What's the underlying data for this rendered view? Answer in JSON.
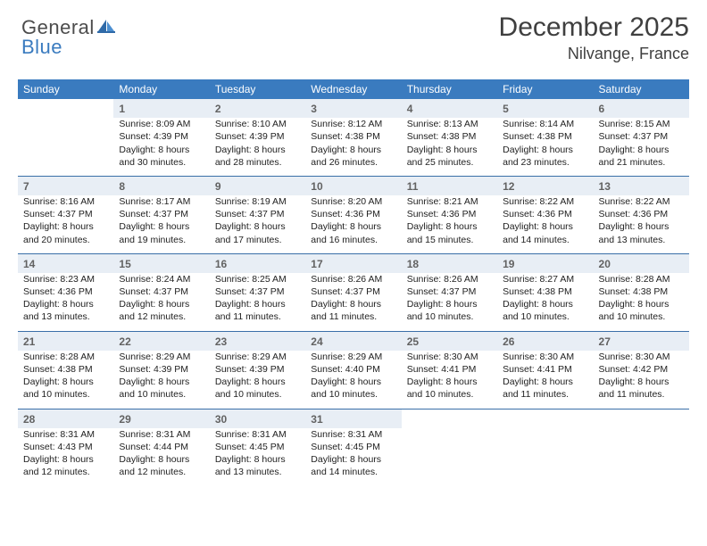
{
  "logo": {
    "part1": "General",
    "part2": "Blue"
  },
  "title": "December 2025",
  "location": "Nilvange, France",
  "colors": {
    "header_bg": "#3a7bbf",
    "header_fg": "#ffffff",
    "daynum_bg": "#e8eef5",
    "daynum_fg": "#626262",
    "rule": "#3a6fa8",
    "text": "#222222",
    "title_fg": "#3f3f3f"
  },
  "fonts": {
    "title_size_pt": 22,
    "location_size_pt": 13,
    "header_size_pt": 9,
    "daynum_size_pt": 9,
    "body_size_pt": 8
  },
  "weekdays": [
    "Sunday",
    "Monday",
    "Tuesday",
    "Wednesday",
    "Thursday",
    "Friday",
    "Saturday"
  ],
  "weeks": [
    {
      "nums": [
        "",
        "1",
        "2",
        "3",
        "4",
        "5",
        "6"
      ],
      "cells": [
        null,
        {
          "sunrise": "Sunrise: 8:09 AM",
          "sunset": "Sunset: 4:39 PM",
          "day1": "Daylight: 8 hours",
          "day2": "and 30 minutes."
        },
        {
          "sunrise": "Sunrise: 8:10 AM",
          "sunset": "Sunset: 4:39 PM",
          "day1": "Daylight: 8 hours",
          "day2": "and 28 minutes."
        },
        {
          "sunrise": "Sunrise: 8:12 AM",
          "sunset": "Sunset: 4:38 PM",
          "day1": "Daylight: 8 hours",
          "day2": "and 26 minutes."
        },
        {
          "sunrise": "Sunrise: 8:13 AM",
          "sunset": "Sunset: 4:38 PM",
          "day1": "Daylight: 8 hours",
          "day2": "and 25 minutes."
        },
        {
          "sunrise": "Sunrise: 8:14 AM",
          "sunset": "Sunset: 4:38 PM",
          "day1": "Daylight: 8 hours",
          "day2": "and 23 minutes."
        },
        {
          "sunrise": "Sunrise: 8:15 AM",
          "sunset": "Sunset: 4:37 PM",
          "day1": "Daylight: 8 hours",
          "day2": "and 21 minutes."
        }
      ]
    },
    {
      "nums": [
        "7",
        "8",
        "9",
        "10",
        "11",
        "12",
        "13"
      ],
      "cells": [
        {
          "sunrise": "Sunrise: 8:16 AM",
          "sunset": "Sunset: 4:37 PM",
          "day1": "Daylight: 8 hours",
          "day2": "and 20 minutes."
        },
        {
          "sunrise": "Sunrise: 8:17 AM",
          "sunset": "Sunset: 4:37 PM",
          "day1": "Daylight: 8 hours",
          "day2": "and 19 minutes."
        },
        {
          "sunrise": "Sunrise: 8:19 AM",
          "sunset": "Sunset: 4:37 PM",
          "day1": "Daylight: 8 hours",
          "day2": "and 17 minutes."
        },
        {
          "sunrise": "Sunrise: 8:20 AM",
          "sunset": "Sunset: 4:36 PM",
          "day1": "Daylight: 8 hours",
          "day2": "and 16 minutes."
        },
        {
          "sunrise": "Sunrise: 8:21 AM",
          "sunset": "Sunset: 4:36 PM",
          "day1": "Daylight: 8 hours",
          "day2": "and 15 minutes."
        },
        {
          "sunrise": "Sunrise: 8:22 AM",
          "sunset": "Sunset: 4:36 PM",
          "day1": "Daylight: 8 hours",
          "day2": "and 14 minutes."
        },
        {
          "sunrise": "Sunrise: 8:22 AM",
          "sunset": "Sunset: 4:36 PM",
          "day1": "Daylight: 8 hours",
          "day2": "and 13 minutes."
        }
      ]
    },
    {
      "nums": [
        "14",
        "15",
        "16",
        "17",
        "18",
        "19",
        "20"
      ],
      "cells": [
        {
          "sunrise": "Sunrise: 8:23 AM",
          "sunset": "Sunset: 4:36 PM",
          "day1": "Daylight: 8 hours",
          "day2": "and 13 minutes."
        },
        {
          "sunrise": "Sunrise: 8:24 AM",
          "sunset": "Sunset: 4:37 PM",
          "day1": "Daylight: 8 hours",
          "day2": "and 12 minutes."
        },
        {
          "sunrise": "Sunrise: 8:25 AM",
          "sunset": "Sunset: 4:37 PM",
          "day1": "Daylight: 8 hours",
          "day2": "and 11 minutes."
        },
        {
          "sunrise": "Sunrise: 8:26 AM",
          "sunset": "Sunset: 4:37 PM",
          "day1": "Daylight: 8 hours",
          "day2": "and 11 minutes."
        },
        {
          "sunrise": "Sunrise: 8:26 AM",
          "sunset": "Sunset: 4:37 PM",
          "day1": "Daylight: 8 hours",
          "day2": "and 10 minutes."
        },
        {
          "sunrise": "Sunrise: 8:27 AM",
          "sunset": "Sunset: 4:38 PM",
          "day1": "Daylight: 8 hours",
          "day2": "and 10 minutes."
        },
        {
          "sunrise": "Sunrise: 8:28 AM",
          "sunset": "Sunset: 4:38 PM",
          "day1": "Daylight: 8 hours",
          "day2": "and 10 minutes."
        }
      ]
    },
    {
      "nums": [
        "21",
        "22",
        "23",
        "24",
        "25",
        "26",
        "27"
      ],
      "cells": [
        {
          "sunrise": "Sunrise: 8:28 AM",
          "sunset": "Sunset: 4:38 PM",
          "day1": "Daylight: 8 hours",
          "day2": "and 10 minutes."
        },
        {
          "sunrise": "Sunrise: 8:29 AM",
          "sunset": "Sunset: 4:39 PM",
          "day1": "Daylight: 8 hours",
          "day2": "and 10 minutes."
        },
        {
          "sunrise": "Sunrise: 8:29 AM",
          "sunset": "Sunset: 4:39 PM",
          "day1": "Daylight: 8 hours",
          "day2": "and 10 minutes."
        },
        {
          "sunrise": "Sunrise: 8:29 AM",
          "sunset": "Sunset: 4:40 PM",
          "day1": "Daylight: 8 hours",
          "day2": "and 10 minutes."
        },
        {
          "sunrise": "Sunrise: 8:30 AM",
          "sunset": "Sunset: 4:41 PM",
          "day1": "Daylight: 8 hours",
          "day2": "and 10 minutes."
        },
        {
          "sunrise": "Sunrise: 8:30 AM",
          "sunset": "Sunset: 4:41 PM",
          "day1": "Daylight: 8 hours",
          "day2": "and 11 minutes."
        },
        {
          "sunrise": "Sunrise: 8:30 AM",
          "sunset": "Sunset: 4:42 PM",
          "day1": "Daylight: 8 hours",
          "day2": "and 11 minutes."
        }
      ]
    },
    {
      "nums": [
        "28",
        "29",
        "30",
        "31",
        "",
        "",
        ""
      ],
      "cells": [
        {
          "sunrise": "Sunrise: 8:31 AM",
          "sunset": "Sunset: 4:43 PM",
          "day1": "Daylight: 8 hours",
          "day2": "and 12 minutes."
        },
        {
          "sunrise": "Sunrise: 8:31 AM",
          "sunset": "Sunset: 4:44 PM",
          "day1": "Daylight: 8 hours",
          "day2": "and 12 minutes."
        },
        {
          "sunrise": "Sunrise: 8:31 AM",
          "sunset": "Sunset: 4:45 PM",
          "day1": "Daylight: 8 hours",
          "day2": "and 13 minutes."
        },
        {
          "sunrise": "Sunrise: 8:31 AM",
          "sunset": "Sunset: 4:45 PM",
          "day1": "Daylight: 8 hours",
          "day2": "and 14 minutes."
        },
        null,
        null,
        null
      ]
    }
  ]
}
